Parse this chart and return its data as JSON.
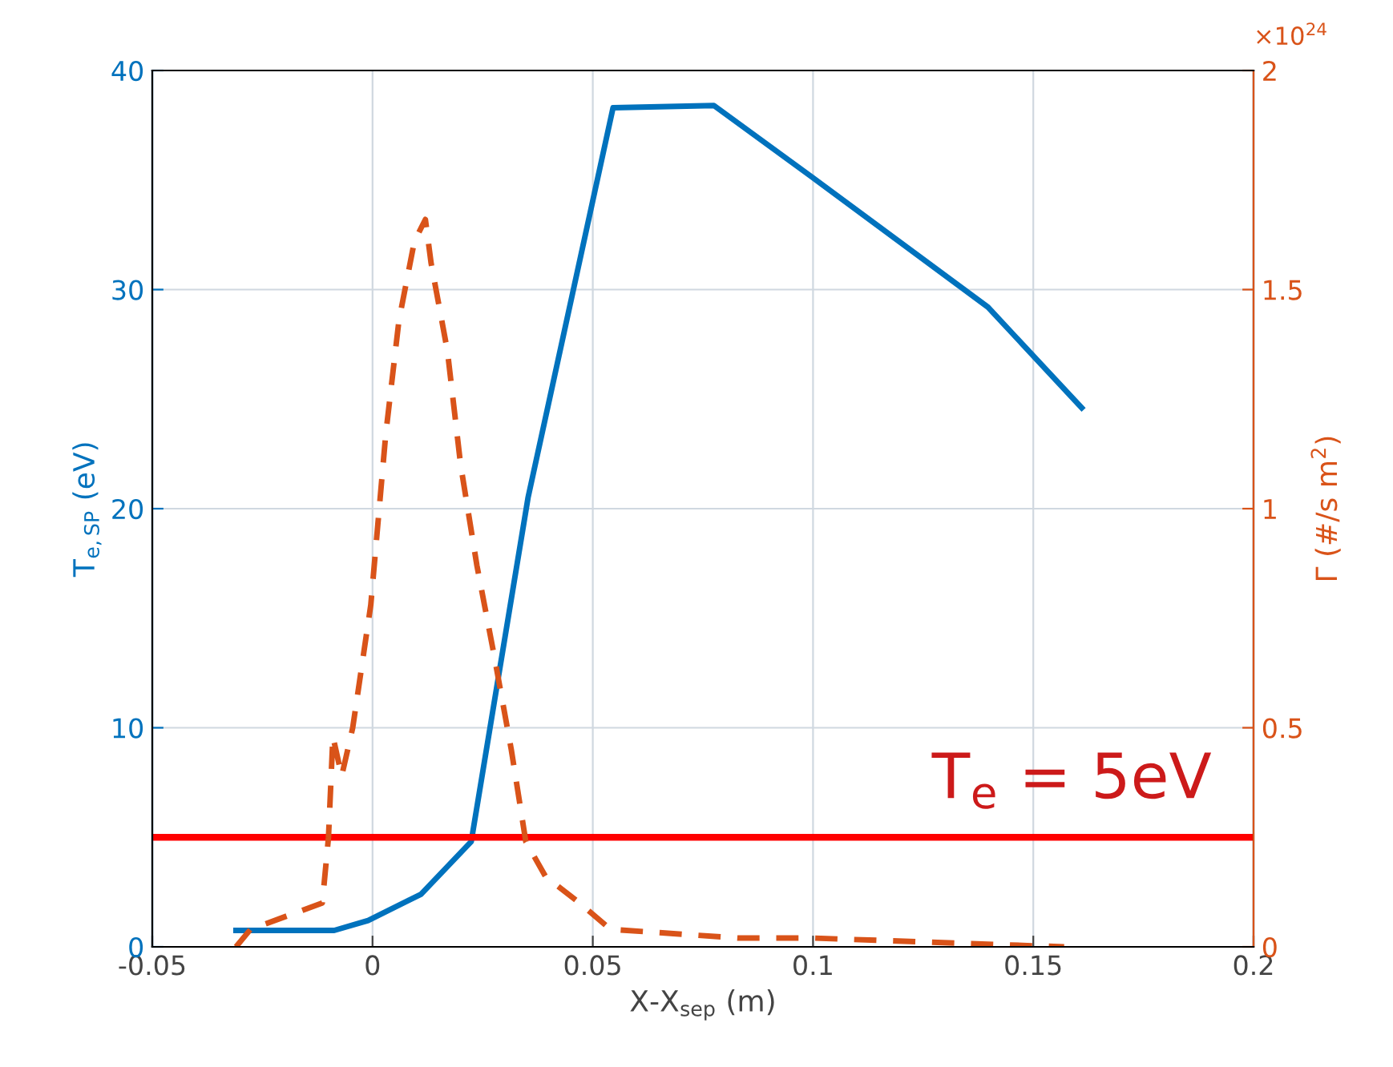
{
  "chart_data": {
    "type": "line",
    "xlabel": "X-X$_{sep}$ (m)",
    "ylabel": "T$_{e,SP}$ (eV)",
    "y2label": "Γ (#/s m$^{2}$)",
    "series": [
      {
        "color": "#0072bd",
        "line_style": "solid",
        "x": [
          -0.031,
          -0.0087,
          -0.001,
          0.011,
          0.0224,
          0.0353,
          0.0546,
          0.0775,
          0.1,
          0.1397,
          0.161
        ],
        "values": [
          0.75,
          0.75,
          1.2,
          2.4,
          4.8,
          20.5,
          38.3,
          38.4,
          35.1,
          29.2,
          24.6
        ]
      },
      {
        "color": "#d95319",
        "line_style": "dashed",
        "axis": "y2",
        "x": [
          -0.031,
          -0.0277,
          -0.0114,
          -0.01,
          -0.009,
          -0.007,
          -0.0045,
          -0.0004,
          0.003,
          0.006,
          0.0095,
          0.012,
          0.0133,
          0.017,
          0.02,
          0.0237,
          0.0277,
          0.0315,
          0.0348,
          0.0393,
          0.047,
          0.054,
          0.083,
          0.1,
          0.157
        ],
        "values": [
          0,
          0.04,
          0.1,
          0.25,
          0.48,
          0.39,
          0.5,
          0.78,
          1.17,
          1.43,
          1.61,
          1.66,
          1.56,
          1.36,
          1.1,
          0.87,
          0.66,
          0.45,
          0.24,
          0.16,
          0.1,
          0.04,
          0.02,
          0.02,
          0.0
        ]
      }
    ],
    "xlim": [
      -0.05,
      0.2
    ],
    "xticks": [
      -0.05,
      0,
      0.05,
      0.1,
      0.15,
      0.2
    ],
    "ylim": [
      0,
      40
    ],
    "yticks": [
      0,
      10,
      20,
      30,
      40
    ],
    "y2lim": [
      0,
      2
    ],
    "y2ticks": [
      0,
      0.5,
      1,
      1.5,
      2
    ],
    "ref_lines": [
      {
        "axis": "y",
        "value": 5,
        "label": "T$_{e}$ = 5eV",
        "color": "#ff0000"
      }
    ],
    "annotations": [
      "×10$^{24}$"
    ],
    "grid": true,
    "legend": false
  }
}
